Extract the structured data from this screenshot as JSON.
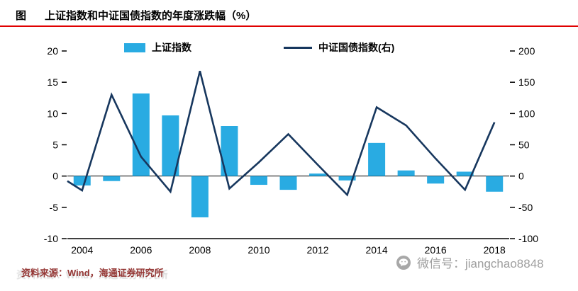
{
  "header": {
    "tag": "图",
    "title": "上证指数和中证国债指数的年度涨跌幅（%）"
  },
  "footer": {
    "source": "资料来源：Wind，海通证券研究所",
    "watermark": "微信号：jiangchao8848"
  },
  "colors": {
    "bar_blue": "#29ABE2",
    "line_navy": "#17375E",
    "title_rule_red": "#E00000",
    "source_text_red": "#953735",
    "watermark_gray": "#9E9E9E"
  },
  "chart_data": {
    "type": "combo-bar-line",
    "title": "上证指数和中证国债指数的年度涨跌幅（%）",
    "categories": [
      "2004",
      "2005",
      "2006",
      "2007",
      "2008",
      "2009",
      "2010",
      "2011",
      "2012",
      "2013",
      "2014",
      "2015",
      "2016",
      "2017",
      "2018"
    ],
    "x_tick_labels": [
      "2004",
      "2006",
      "2008",
      "2010",
      "2012",
      "2014",
      "2016",
      "2018"
    ],
    "series": [
      {
        "name": "上证指数",
        "type": "bar",
        "y_axis": "left",
        "color": "#29ABE2",
        "values": [
          -1.5,
          -0.8,
          13.2,
          9.7,
          -6.6,
          8.0,
          -1.4,
          -2.2,
          0.4,
          -0.7,
          5.3,
          0.9,
          -1.2,
          0.7,
          -2.5
        ]
      },
      {
        "name": "中证国债指数(右)",
        "type": "line",
        "y_axis": "right",
        "color": "#17375E",
        "lead_in_value": -8,
        "values": [
          -23,
          130,
          31,
          -25,
          168,
          -20,
          22,
          67,
          18,
          -30,
          110,
          81,
          28,
          -22,
          86
        ]
      }
    ],
    "left_axis": {
      "range": [
        -10,
        20
      ],
      "ticks": [
        20,
        15,
        10,
        5,
        0,
        -5,
        -10
      ]
    },
    "right_axis": {
      "range": [
        -100,
        200
      ],
      "ticks": [
        200,
        150,
        100,
        50,
        0,
        -50,
        -100
      ]
    },
    "grid": false,
    "legend_position": "top"
  }
}
